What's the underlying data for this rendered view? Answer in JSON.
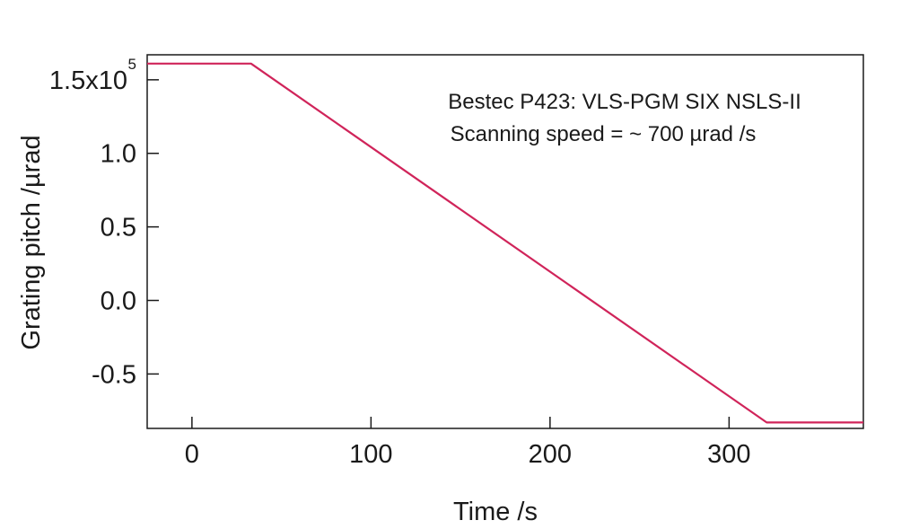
{
  "chart_data": {
    "type": "line",
    "title": "",
    "xlabel": "Time /s",
    "ylabel": "Grating pitch /µrad",
    "xlim": [
      -25,
      375
    ],
    "ylim": [
      -0.87,
      1.67
    ],
    "y_scale_factor": "x10^5",
    "grid": false,
    "x_ticks": [
      {
        "value": 0,
        "label": "0"
      },
      {
        "value": 100,
        "label": "100"
      },
      {
        "value": 200,
        "label": "200"
      },
      {
        "value": 300,
        "label": "300"
      }
    ],
    "y_ticks": [
      {
        "value": -0.5,
        "label": "-0.5"
      },
      {
        "value": 0.0,
        "label": "0.0"
      },
      {
        "value": 0.5,
        "label": "0.5"
      },
      {
        "value": 1.0,
        "label": "1.0"
      },
      {
        "value": 1.5,
        "label": "1.5x10",
        "exponent": "5"
      }
    ],
    "annotations": [
      "Bestec P423: VLS-PGM SIX NSLS-II",
      "Scanning speed = ~ 700 µrad /s"
    ],
    "series": [
      {
        "color": "#d0245a",
        "x": [
          -25,
          33,
          321,
          375
        ],
        "y": [
          1.61,
          1.61,
          -0.83,
          -0.83
        ]
      }
    ]
  }
}
